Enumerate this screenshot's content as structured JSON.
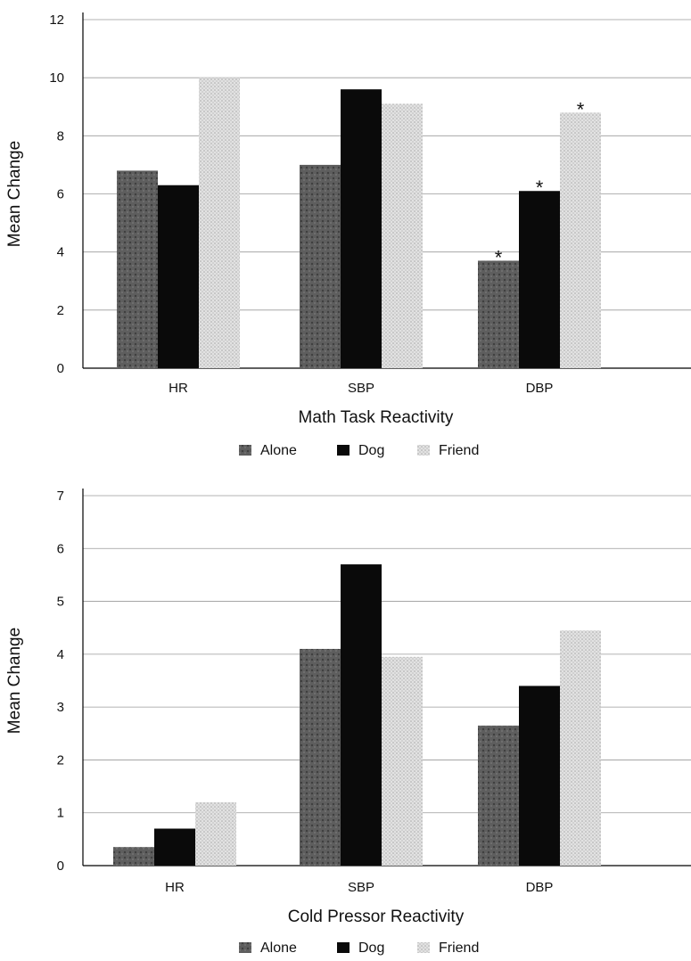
{
  "chart_data": [
    {
      "type": "bar",
      "categories": [
        "HR",
        "SBP",
        "DBP"
      ],
      "series": [
        {
          "name": "Alone",
          "values": [
            6.8,
            7.0,
            3.7
          ]
        },
        {
          "name": "Dog",
          "values": [
            6.3,
            9.6,
            6.1
          ]
        },
        {
          "name": "Friend",
          "values": [
            10.0,
            9.1,
            8.8
          ]
        }
      ],
      "significance": {
        "DBP": [
          "*",
          "*",
          "*"
        ]
      },
      "xlabel": "Math Task Reactivity",
      "ylabel": "Mean Change",
      "ylim": [
        0,
        12
      ],
      "yticks": [
        "0",
        "2",
        "4",
        "6",
        "8",
        "10",
        "12"
      ],
      "grid": true,
      "legend_position": "bottom"
    },
    {
      "type": "bar",
      "categories": [
        "HR",
        "SBP",
        "DBP"
      ],
      "series": [
        {
          "name": "Alone",
          "values": [
            0.35,
            4.1,
            2.65
          ]
        },
        {
          "name": "Dog",
          "values": [
            0.7,
            5.7,
            3.4
          ]
        },
        {
          "name": "Friend",
          "values": [
            1.2,
            3.95,
            4.45
          ]
        }
      ],
      "xlabel": "Cold Pressor Reactivity",
      "ylabel": "Mean Change",
      "ylim": [
        0,
        7
      ],
      "yticks": [
        "0",
        "1",
        "2",
        "3",
        "4",
        "5",
        "6",
        "7"
      ],
      "grid": true,
      "legend_position": "bottom"
    }
  ],
  "colors": {
    "Alone": "#5e5e5e",
    "Dog": "#0a0a0a",
    "Friend": "#d0d0d0",
    "grid": "#9a9a9a",
    "axis": "#000000"
  }
}
